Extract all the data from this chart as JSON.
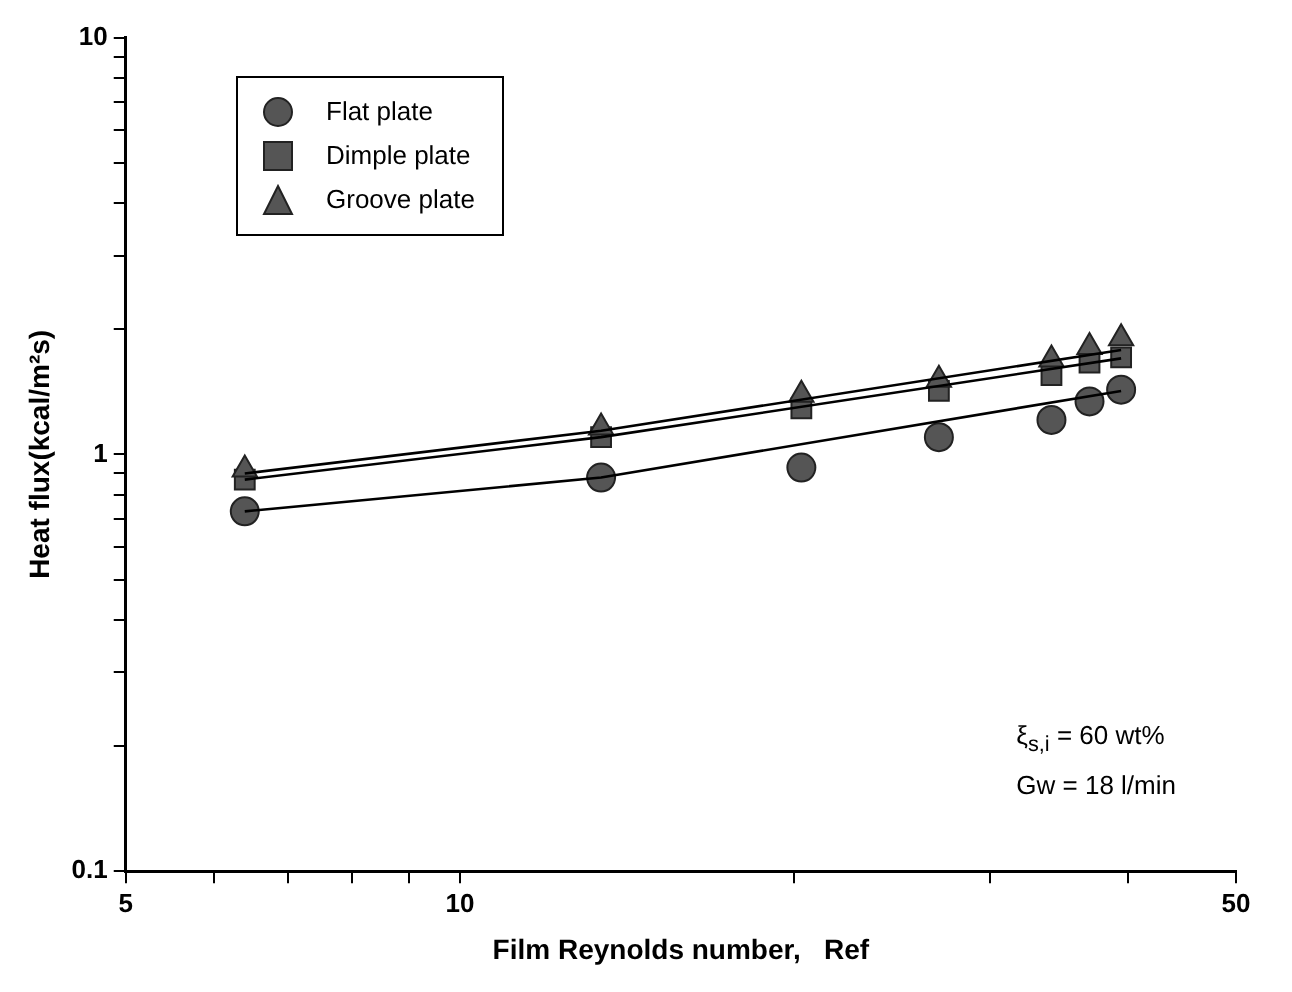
{
  "chart_data": {
    "type": "scatter",
    "xlabel": "Film Reynolds number,   Ref",
    "ylabel": "Heat flux(kcal/m²s)",
    "log": "xy",
    "grid": false,
    "legend": "top left",
    "xlim": [
      5,
      50
    ],
    "ylim": [
      0.1,
      10
    ],
    "xticks": [
      5,
      {
        "value": 6,
        "label": null
      },
      {
        "value": 7,
        "label": null
      },
      {
        "value": 8,
        "label": null
      },
      {
        "value": 9,
        "label": null
      },
      10,
      {
        "value": 20,
        "label": null
      },
      {
        "value": 30,
        "label": null
      },
      {
        "value": 40,
        "label": null
      },
      50
    ],
    "yticks": [
      0.1,
      {
        "value": 0.2,
        "label": null
      },
      {
        "value": 0.3,
        "label": null
      },
      {
        "value": 0.4,
        "label": null
      },
      {
        "value": 0.5,
        "label": null
      },
      {
        "value": 0.6,
        "label": null
      },
      {
        "value": 0.7,
        "label": null
      },
      {
        "value": 0.8,
        "label": null
      },
      {
        "value": 0.9,
        "label": null
      },
      1,
      {
        "value": 2,
        "label": null
      },
      {
        "value": 3,
        "label": null
      },
      {
        "value": 4,
        "label": null
      },
      {
        "value": 5,
        "label": null
      },
      {
        "value": 6,
        "label": null
      },
      {
        "value": 7,
        "label": null
      },
      {
        "value": 8,
        "label": null
      },
      {
        "value": 9,
        "label": null
      },
      10
    ],
    "x": [
      6.4,
      13.4,
      20.3,
      27,
      34.1,
      36.9,
      39.4
    ],
    "series": [
      {
        "name": "Flat plate",
        "color": "#555555",
        "marker": "circle",
        "values": [
          0.73,
          0.88,
          0.93,
          1.1,
          1.21,
          1.34,
          1.43
        ]
      },
      {
        "name": "Dimple plate",
        "color": "#555555",
        "marker": "square",
        "values": [
          0.87,
          1.1,
          1.29,
          1.42,
          1.55,
          1.66,
          1.71
        ]
      },
      {
        "name": "Groove plate",
        "color": "#555555",
        "marker": "triangle",
        "values": [
          0.92,
          1.16,
          1.39,
          1.51,
          1.69,
          1.81,
          1.9
        ]
      },
      {
        "type": "line",
        "color": "#000000",
        "marker": "none",
        "x": [
          6.4,
          13.4,
          39.4
        ],
        "values": [
          0.73,
          0.88,
          1.42
        ]
      },
      {
        "type": "line",
        "color": "#000000",
        "marker": "none",
        "x": [
          6.4,
          13.4,
          39.4
        ],
        "values": [
          0.87,
          1.1,
          1.7
        ]
      },
      {
        "type": "line",
        "color": "#000000",
        "marker": "none",
        "x": [
          6.4,
          13.4,
          39.4
        ],
        "values": [
          0.9,
          1.14,
          1.78
        ]
      }
    ],
    "annotations": [
      "ξ$_{s,i}$ = 60 wt%",
      "Gw = 18 l/min"
    ]
  }
}
